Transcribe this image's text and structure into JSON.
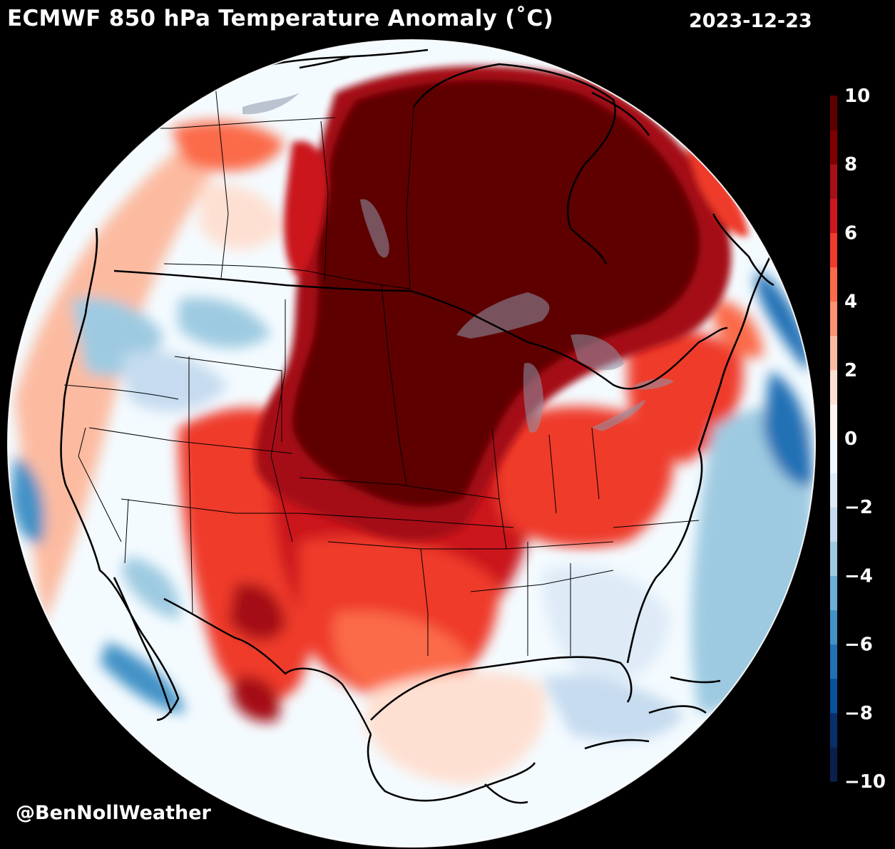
{
  "header": {
    "title": "ECMWF 850 hPa Temperature Anomaly (˚C)",
    "date": "2023-12-23"
  },
  "footer": {
    "credit": "@BenNollWeather"
  },
  "colorbar": {
    "min": -10,
    "max": 10,
    "tick_labels": [
      "10",
      "8",
      "6",
      "4",
      "2",
      "0",
      "−2",
      "−4",
      "−6",
      "−8",
      "−10"
    ],
    "tick_values": [
      10,
      8,
      6,
      4,
      2,
      0,
      -2,
      -4,
      -6,
      -8,
      -10
    ],
    "colors": [
      "#0b1f4b",
      "#08306b",
      "#08519c",
      "#2171b5",
      "#4292c6",
      "#6baed6",
      "#9ecae1",
      "#c6dbef",
      "#deebf7",
      "#f0f8ff",
      "#fff5f0",
      "#fee0d2",
      "#fcbba1",
      "#fc9272",
      "#fb6a4a",
      "#ef3b2c",
      "#cb181d",
      "#a50f15",
      "#800000",
      "#5e0000"
    ]
  },
  "map": {
    "projection": "orthographic",
    "region": "North America",
    "features": [
      "coastlines",
      "country-borders",
      "state-borders",
      "great-lakes"
    ]
  }
}
